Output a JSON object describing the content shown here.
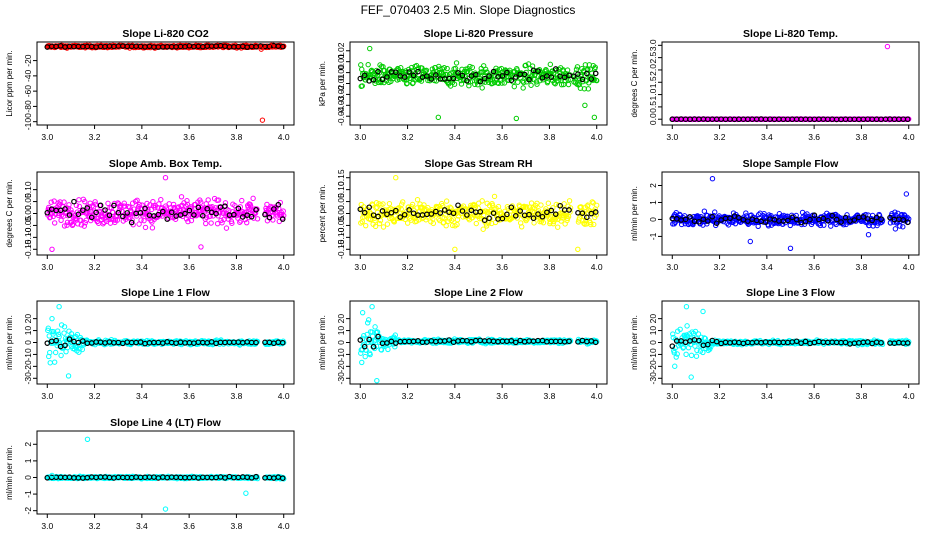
{
  "main_title": "FEF_070403  2.5 Min. Slope Diagnostics",
  "chart_data": [
    {
      "type": "scatter",
      "title": "Slope Li-820 CO2",
      "ylabel": "Licor ppm per min.",
      "xlim": [
        3.0,
        4.0
      ],
      "ylim": [
        -100,
        0
      ],
      "x_ticks": [
        "3.0",
        "3.2",
        "3.4",
        "3.6",
        "3.8",
        "4.0"
      ],
      "y_ticks": [
        "-20",
        "-40",
        "-60",
        "-80",
        "-100"
      ],
      "y_tick_values": [
        -20,
        -40,
        -60,
        -80,
        -100
      ],
      "color": "#ff0000",
      "series": [
        {
          "name": "points",
          "center": -1.5,
          "spread": 1.5
        }
      ],
      "outliers": [
        [
          3.91,
          -98
        ],
        [
          3.905,
          -5
        ],
        [
          3.95,
          -2
        ]
      ],
      "gaps": [
        [
          3.89,
          3.9
        ]
      ]
    },
    {
      "type": "scatter",
      "title": "Slope Li-820 Pressure",
      "ylabel": "kPa per min.",
      "xlim": [
        3.0,
        4.0
      ],
      "ylim": [
        -0.045,
        0.025
      ],
      "x_ticks": [
        "3.0",
        "3.2",
        "3.4",
        "3.6",
        "3.8",
        "4.0"
      ],
      "y_ticks": [
        "0.02",
        "0.01",
        "0.00",
        "-0.01",
        "-0.02",
        "-0.03",
        "-0.04"
      ],
      "y_tick_values": [
        0.02,
        0.01,
        0.0,
        -0.01,
        -0.02,
        -0.03,
        -0.04
      ],
      "color": "#00cc00",
      "series": [
        {
          "name": "points",
          "center": -0.003,
          "spread": 0.009
        }
      ],
      "outliers": [
        [
          3.33,
          -0.041
        ],
        [
          3.66,
          -0.042
        ],
        [
          3.99,
          -0.041
        ],
        [
          3.04,
          0.022
        ],
        [
          3.95,
          -0.03
        ]
      ],
      "gaps": [
        [
          3.89,
          3.9
        ]
      ]
    },
    {
      "type": "scatter",
      "title": "Slope Li-820 Temp.",
      "ylabel": "degrees C per min.",
      "xlim": [
        3.0,
        4.0
      ],
      "ylim": [
        -0.1,
        3.0
      ],
      "x_ticks": [
        "3.0",
        "3.2",
        "3.4",
        "3.6",
        "3.8",
        "4.0"
      ],
      "y_ticks": [
        "3.0",
        "2.5",
        "2.0",
        "1.5",
        "1.0",
        "0.5",
        "0.0"
      ],
      "y_tick_values": [
        3.0,
        2.5,
        2.0,
        1.5,
        1.0,
        0.5,
        0.0
      ],
      "color": "#ff00ff",
      "series": [
        {
          "name": "points",
          "center": 0.0,
          "spread": 0.01
        }
      ],
      "outliers": [
        [
          3.91,
          2.95
        ]
      ],
      "gaps": [
        [
          3.89,
          3.9
        ]
      ]
    },
    {
      "type": "scatter",
      "title": "Slope Amb. Box Temp.",
      "ylabel": "degrees C per min.",
      "xlim": [
        3.0,
        4.0
      ],
      "ylim": [
        -0.16,
        0.16
      ],
      "x_ticks": [
        "3.0",
        "3.2",
        "3.4",
        "3.6",
        "3.8",
        "4.0"
      ],
      "y_ticks": [
        "0.10",
        "0.05",
        "0.00",
        "-0.05",
        "-0.10",
        "-0.15"
      ],
      "y_tick_values": [
        0.1,
        0.05,
        0.0,
        -0.05,
        -0.1,
        -0.15
      ],
      "color": "#ff00ff",
      "series": [
        {
          "name": "points",
          "center": 0.005,
          "spread": 0.05
        }
      ],
      "outliers": [
        [
          3.02,
          -0.15
        ],
        [
          3.5,
          0.15
        ],
        [
          3.65,
          -0.14
        ]
      ],
      "gaps": [
        [
          3.89,
          3.92
        ]
      ]
    },
    {
      "type": "scatter",
      "title": "Slope Gas Stream RH",
      "ylabel": "percent per min.",
      "xlim": [
        3.0,
        4.0
      ],
      "ylim": [
        -0.16,
        0.16
      ],
      "x_ticks": [
        "3.0",
        "3.2",
        "3.4",
        "3.6",
        "3.8",
        "4.0"
      ],
      "y_ticks": [
        "0.15",
        "0.10",
        "0.05",
        "0.00",
        "-0.05",
        "-0.10",
        "-0.15"
      ],
      "y_tick_values": [
        0.15,
        0.1,
        0.05,
        0.0,
        -0.05,
        -0.1,
        -0.15
      ],
      "color": "#ffff00",
      "series": [
        {
          "name": "points",
          "center": 0.0,
          "spread": 0.05
        }
      ],
      "outliers": [
        [
          3.15,
          0.15
        ],
        [
          3.4,
          -0.15
        ],
        [
          3.92,
          -0.15
        ]
      ],
      "gaps": [
        [
          3.89,
          3.92
        ]
      ]
    },
    {
      "type": "scatter",
      "title": "Slope Sample Flow",
      "ylabel": "ml/min per min.",
      "xlim": [
        3.0,
        4.0
      ],
      "ylim": [
        -1.9,
        2.6
      ],
      "x_ticks": [
        "3.0",
        "3.2",
        "3.4",
        "3.6",
        "3.8",
        "4.0"
      ],
      "y_ticks": [
        "2",
        "1",
        "0",
        "-1"
      ],
      "y_tick_values": [
        2,
        1,
        0,
        -1
      ],
      "color": "#0000ff",
      "series": [
        {
          "name": "points",
          "center": 0.0,
          "spread": 0.35
        }
      ],
      "outliers": [
        [
          3.17,
          2.4
        ],
        [
          3.33,
          -1.3
        ],
        [
          3.5,
          -1.7
        ],
        [
          3.83,
          -0.9
        ],
        [
          3.99,
          1.5
        ]
      ],
      "gaps": [
        [
          3.89,
          3.92
        ]
      ]
    },
    {
      "type": "scatter",
      "title": "Slope Line 1 Flow",
      "ylabel": "ml/min per min.",
      "xlim": [
        3.0,
        4.0
      ],
      "ylim": [
        -32,
        32
      ],
      "x_ticks": [
        "3.0",
        "3.2",
        "3.4",
        "3.6",
        "3.8",
        "4.0"
      ],
      "y_ticks": [
        "20",
        "10",
        "0",
        "-10",
        "-20",
        "-30"
      ],
      "y_tick_values": [
        20,
        10,
        0,
        -10,
        -20,
        -30
      ],
      "color": "#00ffff",
      "series": [
        {
          "name": "points",
          "center": 0.0,
          "spread": 1.5,
          "early_spread": 16
        }
      ],
      "outliers": [
        [
          3.05,
          30
        ],
        [
          3.09,
          -28
        ],
        [
          3.02,
          20
        ]
      ],
      "gaps": [
        [
          3.89,
          3.92
        ]
      ]
    },
    {
      "type": "scatter",
      "title": "Slope Line 2 Flow",
      "ylabel": "ml/min per min.",
      "xlim": [
        3.0,
        4.0
      ],
      "ylim": [
        -32,
        32
      ],
      "x_ticks": [
        "3.0",
        "3.2",
        "3.4",
        "3.6",
        "3.8",
        "4.0"
      ],
      "y_ticks": [
        "20",
        "10",
        "0",
        "-10",
        "-20",
        "-30"
      ],
      "y_tick_values": [
        20,
        10,
        0,
        -10,
        -20,
        -30
      ],
      "color": "#00ffff",
      "series": [
        {
          "name": "points",
          "center": 1.0,
          "spread": 1.5,
          "early_spread": 16
        }
      ],
      "outliers": [
        [
          3.05,
          30
        ],
        [
          3.07,
          -32
        ],
        [
          3.01,
          25
        ]
      ],
      "gaps": [
        [
          3.89,
          3.92
        ]
      ]
    },
    {
      "type": "scatter",
      "title": "Slope Line 3 Flow",
      "ylabel": "ml/min per min.",
      "xlim": [
        3.0,
        4.0
      ],
      "ylim": [
        -32,
        32
      ],
      "x_ticks": [
        "3.0",
        "3.2",
        "3.4",
        "3.6",
        "3.8",
        "4.0"
      ],
      "y_ticks": [
        "20",
        "10",
        "0",
        "-10",
        "-20",
        "-30"
      ],
      "y_tick_values": [
        20,
        10,
        0,
        -10,
        -20,
        -30
      ],
      "color": "#00ffff",
      "series": [
        {
          "name": "points",
          "center": 0.0,
          "spread": 1.5,
          "early_spread": 16
        }
      ],
      "outliers": [
        [
          3.06,
          30
        ],
        [
          3.08,
          -29
        ],
        [
          3.13,
          26
        ]
      ],
      "gaps": [
        [
          3.89,
          3.92
        ]
      ]
    },
    {
      "type": "scatter",
      "title": "Slope Line 4 (LT) Flow",
      "ylabel": "ml/min per min.",
      "xlim": [
        3.0,
        4.0
      ],
      "ylim": [
        -2.0,
        2.6
      ],
      "x_ticks": [
        "3.0",
        "3.2",
        "3.4",
        "3.6",
        "3.8",
        "4.0"
      ],
      "y_ticks": [
        "2",
        "1",
        "0",
        "-1",
        "-2"
      ],
      "y_tick_values": [
        2,
        1,
        0,
        -1,
        -2
      ],
      "color": "#00ffff",
      "series": [
        {
          "name": "points",
          "center": 0.0,
          "spread": 0.06
        }
      ],
      "outliers": [
        [
          3.17,
          2.3
        ],
        [
          3.5,
          -1.9
        ],
        [
          3.84,
          -0.95
        ],
        [
          3.02,
          0.12
        ]
      ],
      "gaps": [
        [
          3.89,
          3.92
        ]
      ]
    }
  ]
}
